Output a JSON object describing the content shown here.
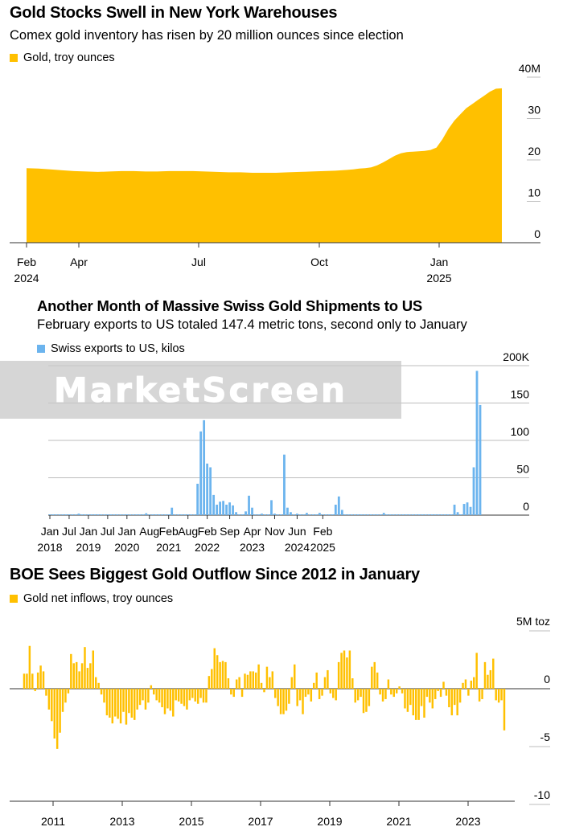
{
  "colors": {
    "gold": "#FFC000",
    "blue": "#6CB4EE",
    "grid": "#BDBDBD",
    "axis": "#333333"
  },
  "chart_data": [
    {
      "type": "area",
      "title": "Gold Stocks Swell in New York Warehouses",
      "subtitle": "Comex gold inventory has risen by 20 million ounces since election",
      "legend": "Gold, troy ounces",
      "legend_position": "top-left",
      "yticks": [
        "40M",
        "30",
        "20",
        "10",
        "0"
      ],
      "ylim": [
        0,
        40000000
      ],
      "xticks": [
        [
          "Feb",
          "2024"
        ],
        [
          "Apr",
          ""
        ],
        [
          "Jul",
          ""
        ],
        [
          "Oct",
          ""
        ],
        [
          "Jan",
          "2025"
        ]
      ],
      "grid": true,
      "x_unit": "week",
      "series": [
        {
          "x": [
            0,
            2,
            4,
            6,
            8,
            10,
            12,
            14,
            16,
            18,
            20,
            22,
            24,
            26,
            28,
            30,
            32,
            34,
            36,
            38,
            40,
            42,
            44,
            46,
            48,
            50,
            52,
            53,
            54,
            55,
            56,
            57,
            58,
            59,
            60,
            61,
            62,
            63,
            64,
            65,
            66,
            67,
            68,
            69,
            70,
            71,
            72,
            73,
            74,
            75,
            76,
            77,
            78,
            79,
            80
          ],
          "y": [
            18000000,
            17900000,
            17700000,
            17500000,
            17300000,
            17200000,
            17100000,
            17200000,
            17300000,
            17300000,
            17200000,
            17200000,
            17300000,
            17300000,
            17300000,
            17200000,
            17100000,
            17000000,
            17000000,
            16900000,
            16900000,
            16900000,
            17000000,
            17100000,
            17200000,
            17300000,
            17400000,
            17500000,
            17600000,
            17700000,
            17900000,
            18000000,
            18200000,
            18700000,
            19400000,
            20200000,
            21000000,
            21600000,
            21900000,
            22000000,
            22100000,
            22200000,
            22400000,
            23000000,
            25000000,
            27500000,
            29500000,
            31000000,
            32500000,
            33500000,
            34500000,
            35500000,
            36500000,
            37200000,
            37300000
          ]
        }
      ]
    },
    {
      "type": "bar",
      "title": "Another Month of Massive Swiss Gold Shipments to US",
      "subtitle": "February exports to US totaled 147.4 metric tons, second only to January",
      "legend": "Swiss exports to US, kilos",
      "legend_position": "top-left",
      "yticks": [
        "200K",
        "150",
        "100",
        "50",
        "0"
      ],
      "ylim": [
        0,
        200000
      ],
      "xticks": [
        [
          "Jan",
          "2018"
        ],
        [
          "Jul",
          ""
        ],
        [
          "Jan",
          "2019"
        ],
        [
          "Jul",
          ""
        ],
        [
          "Jan",
          "2020"
        ],
        [
          "Aug",
          ""
        ],
        [
          "Feb",
          "2021"
        ],
        [
          "Aug",
          ""
        ],
        [
          "Feb",
          "2022"
        ],
        [
          "Sep",
          ""
        ],
        [
          "Apr",
          "2023"
        ],
        [
          "Nov",
          ""
        ],
        [
          "Jun",
          "2024"
        ],
        [
          "Feb",
          "2025"
        ]
      ],
      "grid": true,
      "start": "2018-01",
      "values": [
        1000,
        500,
        1000,
        500,
        1000,
        800,
        500,
        1000,
        800,
        2000,
        1000,
        800,
        500,
        1000,
        500,
        500,
        1000,
        500,
        800,
        1000,
        1000,
        500,
        1000,
        800,
        1000,
        800,
        1000,
        1000,
        1000,
        1000,
        2500,
        1000,
        500,
        1000,
        1000,
        1000,
        1000,
        1000,
        10000,
        1000,
        1000,
        1000,
        1000,
        1000,
        1000,
        1000,
        42000,
        112000,
        127000,
        69000,
        64000,
        27000,
        14000,
        18000,
        19000,
        14000,
        17000,
        13000,
        4000,
        1000,
        1000,
        5000,
        26000,
        10000,
        1000,
        1000,
        2000,
        1000,
        1000,
        20000,
        2000,
        1000,
        1000,
        81000,
        10000,
        4000,
        1000,
        2000,
        1000,
        1000,
        3000,
        1000,
        1000,
        1000,
        3000,
        1000,
        1000,
        1000,
        1000,
        14000,
        25000,
        7000,
        1000,
        1000,
        1000,
        1000,
        500,
        500,
        1000,
        500,
        500,
        1000,
        500,
        1000,
        3000,
        1000,
        500,
        500,
        500,
        500,
        1000,
        500,
        500,
        1000,
        1000,
        1000,
        500,
        500,
        1000,
        1000,
        1000,
        500,
        500,
        1000,
        1000,
        1000,
        14000,
        4000,
        1000,
        15000,
        17000,
        11000,
        64000,
        193000,
        147400
      ]
    },
    {
      "type": "bar",
      "title": "BOE Sees Biggest Gold Outflow Since 2012 in January",
      "subtitle": "",
      "legend": "Gold net inflows, troy ounces",
      "legend_position": "top-left",
      "yticks": [
        "5M toz",
        "0",
        "-5",
        "-10"
      ],
      "ylim": [
        -10000000,
        5000000
      ],
      "xticks": [
        "2011",
        "2013",
        "2015",
        "2017",
        "2019",
        "2021",
        "2023"
      ],
      "grid": true,
      "start": "2010-07",
      "values": [
        1300000,
        1300000,
        3700000,
        1300000,
        -200000,
        1400000,
        2000000,
        1500000,
        -600000,
        -1800000,
        -2800000,
        -4300000,
        -5200000,
        -3800000,
        -2000000,
        -1200000,
        -400000,
        3000000,
        2200000,
        2300000,
        1500000,
        2200000,
        3600000,
        1800000,
        2200000,
        3300000,
        1000000,
        500000,
        -500000,
        -1200000,
        -2300000,
        -2500000,
        -3000000,
        -2400000,
        -2600000,
        -3000000,
        -2000000,
        -3100000,
        -2100000,
        -2500000,
        -2700000,
        -1800000,
        -1400000,
        -1000000,
        -1800000,
        -1200000,
        300000,
        -500000,
        -1000000,
        -1200000,
        -1600000,
        -2200000,
        -1700000,
        -1900000,
        -2400000,
        -1000000,
        -1100000,
        -1300000,
        -1500000,
        -1800000,
        -1000000,
        -800000,
        -1100000,
        -1300000,
        -800000,
        -1200000,
        -1200000,
        1100000,
        1700000,
        3500000,
        2900000,
        2300000,
        2400000,
        2300000,
        900000,
        -500000,
        -700000,
        800000,
        1000000,
        -700000,
        1300000,
        1200000,
        1500000,
        1500000,
        1400000,
        2100000,
        500000,
        -300000,
        1900000,
        1000000,
        1500000,
        -800000,
        -1500000,
        -2200000,
        -2200000,
        -1900000,
        -1300000,
        1000000,
        2100000,
        -1500000,
        -1000000,
        -2200000,
        -700000,
        -500000,
        -1100000,
        500000,
        1400000,
        -900000,
        -600000,
        1000000,
        1600000,
        -400000,
        -800000,
        -1000000,
        2300000,
        3100000,
        3300000,
        2700000,
        3300000,
        900000,
        -1200000,
        -1000000,
        -700000,
        -2100000,
        -2000000,
        -1500000,
        1900000,
        2300000,
        1400000,
        -500000,
        -1100000,
        -900000,
        800000,
        -500000,
        -700000,
        -400000,
        200000,
        -400000,
        -1700000,
        -2000000,
        -1400000,
        -2300000,
        -2700000,
        -2700000,
        -1500000,
        -2500000,
        -700000,
        -1200000,
        -1700000,
        -900000,
        -200000,
        -700000,
        600000,
        -600000,
        -1600000,
        -2300000,
        -1400000,
        -2300000,
        -1200000,
        500000,
        800000,
        -600000,
        700000,
        1000000,
        3100000,
        -1100000,
        -900000,
        2300000,
        1200000,
        1600000,
        2600000,
        -1000000,
        -1200000,
        -1000000,
        -3600000
      ]
    }
  ]
}
